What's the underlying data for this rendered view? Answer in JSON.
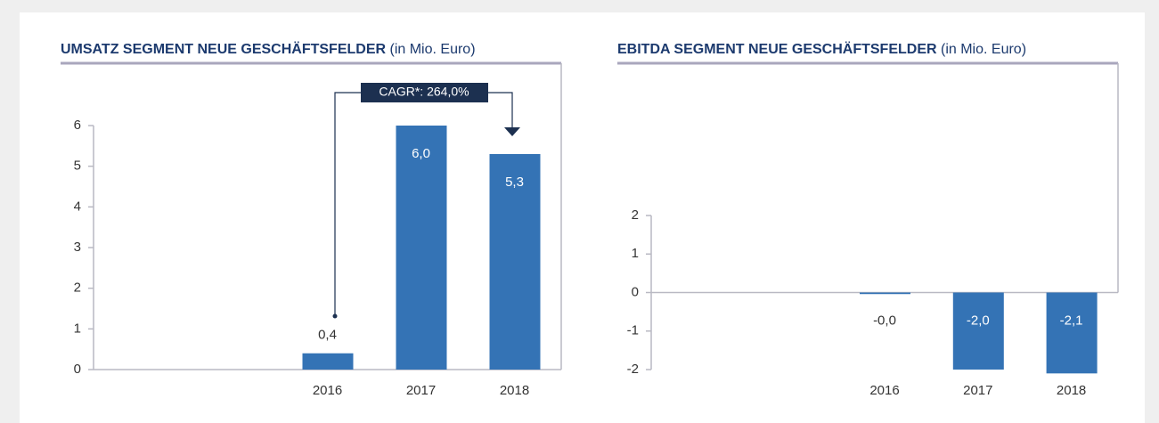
{
  "chart_data": [
    {
      "type": "bar",
      "title": "UMSATZ SEGMENT NEUE GESCHÄFTSFELDER",
      "subtitle": "(in Mio. Euro)",
      "categories": [
        null,
        null,
        "2016",
        "2017",
        "2018"
      ],
      "values": [
        null,
        null,
        0.4,
        6.0,
        5.3
      ],
      "value_labels": [
        null,
        null,
        "0,4",
        "6,0",
        "5,3"
      ],
      "color": "#3473b5",
      "ylim": [
        0,
        6
      ],
      "yticks": [
        0,
        1,
        2,
        3,
        4,
        5,
        6
      ],
      "annotation": "CAGR*: 264,0%"
    },
    {
      "type": "bar",
      "title": "EBITDA SEGMENT NEUE GESCHÄFTSFELDER",
      "subtitle": "(in Mio. Euro)",
      "categories": [
        null,
        null,
        "2016",
        "2017",
        "2018"
      ],
      "values": [
        null,
        null,
        -0.04,
        -2.0,
        -2.1
      ],
      "value_labels": [
        null,
        null,
        "-0,0",
        "-2,0",
        "-2,1"
      ],
      "color": "#3473b5",
      "ylim": [
        -2,
        2
      ],
      "yticks": [
        -2,
        -1,
        0,
        1,
        2
      ]
    }
  ]
}
